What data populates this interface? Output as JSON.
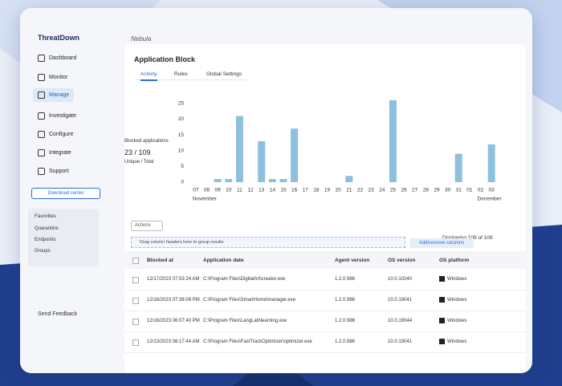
{
  "sidebar": {
    "brand": "ThreatDown",
    "items": [
      "Dashboard",
      "Monitor",
      "Manage",
      "Investigate",
      "Configure",
      "Integrate",
      "Support"
    ],
    "download": "Download center",
    "favorites": {
      "title": "Favorites",
      "items": [
        "Quarantine",
        "Endpoints",
        "Groups"
      ]
    },
    "feedback": "Send Feedback"
  },
  "header": {
    "title": "Nebula"
  },
  "page": {
    "title": "Application Block",
    "tabs": [
      "Activity",
      "Rules",
      "Global Settings"
    ],
    "actions": "Actions",
    "count": "Displaying 109 of 109",
    "group_hint": "Drag column headers here to group results",
    "columns_button": "Add/remove columns"
  },
  "chart_data": {
    "type": "bar",
    "stat_label": "Blocked applications",
    "stat_value": "23 / 109",
    "stat_caption": "Unique / Total",
    "categories": [
      "07",
      "08",
      "09",
      "10",
      "11",
      "12",
      "13",
      "14",
      "15",
      "16",
      "17",
      "18",
      "19",
      "20",
      "21",
      "22",
      "23",
      "24",
      "25",
      "26",
      "27",
      "28",
      "29",
      "30",
      "31",
      "01",
      "02",
      "03"
    ],
    "values": [
      0,
      0,
      1,
      1,
      21,
      0,
      13,
      1,
      1,
      17,
      0,
      0,
      0,
      0,
      2,
      0,
      0,
      0,
      26,
      0,
      0,
      0,
      0,
      0,
      9,
      0,
      0,
      12
    ],
    "color": "#8dc0dd",
    "ylim": [
      0,
      27
    ],
    "yticks": [
      0,
      5,
      10,
      15,
      20,
      25
    ],
    "grid": false,
    "month_labels": [
      {
        "label": "November",
        "category": "07"
      },
      {
        "label": "December",
        "category": "02"
      }
    ]
  },
  "table": {
    "columns": [
      "Blocked at",
      "Application date",
      "Agent version",
      "OS version",
      "OS platform"
    ],
    "rows": [
      [
        "12/17/2023 07:53:24 AM",
        "C:\\Program Files\\DigitalArt\\creator.exe",
        "1.2.0.986",
        "10.0.10240",
        "Windows"
      ],
      [
        "12/16/2023 07:38:09 PM",
        "C:\\Program Files\\SmartHome\\manager.exe",
        "1.2.0.986",
        "10.0.19041",
        "Windows"
      ],
      [
        "12/16/2023 06:07:40 PM",
        "C:\\Program Files\\LangLab\\learning.exe",
        "1.2.0.986",
        "10.0.19044",
        "Windows"
      ],
      [
        "12/13/2023 08:17:44 AM",
        "C:\\Program Files\\FastTrackOptimizer\\optimizer.exe",
        "1.2.0.986",
        "10.0.19041",
        "Windows"
      ]
    ]
  }
}
